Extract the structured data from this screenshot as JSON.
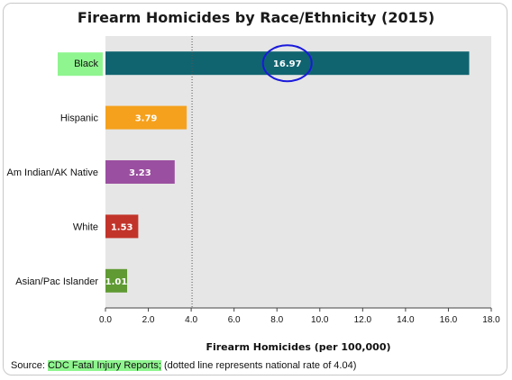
{
  "chart_data": {
    "type": "bar",
    "orientation": "horizontal",
    "title": "Firearm Homicides by Race/Ethnicity (2015)",
    "xlabel": "Firearm Homicides (per 100,000)",
    "xlim": [
      0,
      18
    ],
    "ticks": [
      "0.0",
      "2.0",
      "4.0",
      "6.0",
      "8.0",
      "10.0",
      "12.0",
      "14.0",
      "16.0",
      "18.0"
    ],
    "reference_line": {
      "value": 4.04,
      "style": "dotted"
    },
    "categories": [
      "Black",
      "Hispanic",
      "Am Indian/AK Native",
      "White",
      "Asian/Pac Islander"
    ],
    "values": [
      16.97,
      3.79,
      3.23,
      1.53,
      1.01
    ],
    "value_labels": [
      "16.97",
      "3.79",
      "3.23",
      "1.53",
      "1.01"
    ],
    "colors": [
      "#0f6470",
      "#f5a11d",
      "#9b4fa0",
      "#c2342a",
      "#5f9a33"
    ],
    "label_highlight_color": "#8ff58f",
    "circled_value_color": "#1a1adc",
    "plot_background": "#e6e6e6",
    "grid": false
  },
  "source": {
    "prefix": "Source: ",
    "link": "CDC Fatal Injury Reports;",
    "note": " (dotted line represents national rate of 4.04)"
  }
}
